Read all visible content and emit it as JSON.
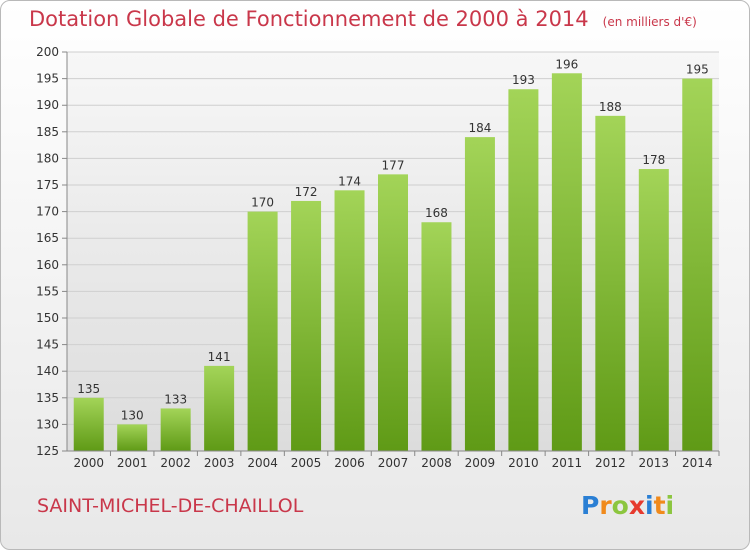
{
  "title": "Dotation Globale de Fonctionnement de 2000 à 2014",
  "unit": "(en milliers d'€)",
  "commune": "SAINT-MICHEL-DE-CHAILLOL",
  "logo": {
    "text": "Proxiti",
    "letters": [
      {
        "ch": "P",
        "color": "#2a7fd4"
      },
      {
        "ch": "r",
        "color": "#f08a1c"
      },
      {
        "ch": "o",
        "color": "#8cc63f"
      },
      {
        "ch": "x",
        "color": "#e63a2e"
      },
      {
        "ch": "i",
        "color": "#2a7fd4"
      },
      {
        "ch": "t",
        "color": "#f08a1c"
      },
      {
        "ch": "i",
        "color": "#8cc63f"
      }
    ]
  },
  "colors": {
    "title": "#c9374a",
    "bar_light": "#a3d458",
    "bar_dark": "#5f9a16",
    "grid": "#cfcfcf",
    "axis_text": "#333333"
  },
  "chart_data": {
    "type": "bar",
    "title": "Dotation Globale de Fonctionnement de 2000 à 2014",
    "subtitle": "(en milliers d'€)",
    "xlabel": "",
    "ylabel": "",
    "categories": [
      "2000",
      "2001",
      "2002",
      "2003",
      "2004",
      "2005",
      "2006",
      "2007",
      "2008",
      "2009",
      "2010",
      "2011",
      "2012",
      "2013",
      "2014"
    ],
    "values": [
      135,
      130,
      133,
      141,
      170,
      172,
      174,
      177,
      168,
      184,
      193,
      196,
      188,
      178,
      195
    ],
    "ylim": [
      125,
      200
    ],
    "yticks": [
      125,
      130,
      135,
      140,
      145,
      150,
      155,
      160,
      165,
      170,
      175,
      180,
      185,
      190,
      195,
      200
    ],
    "grid": true,
    "data_labels": true
  }
}
